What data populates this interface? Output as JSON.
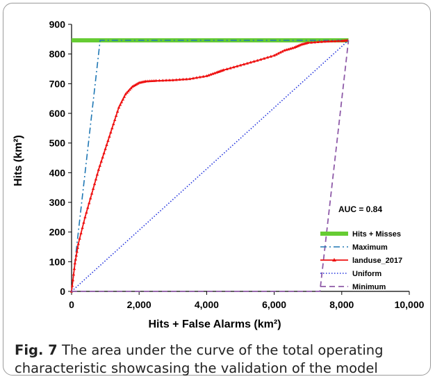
{
  "figure": {
    "caption_label": "Fig. 7",
    "caption_text": "The area under the curve of the total operating characteristic showcasing the validation of the model"
  },
  "chart_data": {
    "type": "line",
    "title": "",
    "xlabel": "Hits + False Alarms (km²)",
    "ylabel": "Hits (km²)",
    "xlim": [
      0,
      10000
    ],
    "ylim": [
      0,
      900
    ],
    "x_ticks": [
      0,
      2000,
      4000,
      6000,
      8000,
      10000
    ],
    "x_tick_labels": [
      "0",
      "2,000",
      "4,000",
      "6,000",
      "8,000",
      "10,000"
    ],
    "y_ticks": [
      0,
      100,
      200,
      300,
      400,
      500,
      600,
      700,
      800,
      900
    ],
    "y_tick_labels": [
      "0",
      "100",
      "200",
      "300",
      "400",
      "500",
      "600",
      "700",
      "800",
      "900"
    ],
    "grid": false,
    "annotation": "AUC = 0.84",
    "legend_position": "bottom-right",
    "series": [
      {
        "name": "Hits + Misses",
        "color": "#66cc33",
        "style": "solid-thick",
        "x": [
          0,
          8200
        ],
        "y": [
          846,
          846
        ]
      },
      {
        "name": "Maximum",
        "color": "#1f77b4",
        "style": "dash-dot",
        "x": [
          0,
          846,
          8200
        ],
        "y": [
          0,
          846,
          846
        ]
      },
      {
        "name": "landuse_2017",
        "color": "#ee1111",
        "style": "solid-marker",
        "x": [
          0,
          100,
          200,
          400,
          600,
          800,
          1000,
          1200,
          1400,
          1600,
          1800,
          2000,
          2200,
          2500,
          3000,
          3500,
          4000,
          4300,
          4500,
          5000,
          5500,
          6000,
          6300,
          6600,
          6800,
          7000,
          7500,
          8000,
          8200
        ],
        "y": [
          0,
          95,
          160,
          250,
          330,
          410,
          480,
          550,
          620,
          665,
          690,
          703,
          708,
          710,
          712,
          716,
          726,
          738,
          746,
          762,
          778,
          795,
          812,
          822,
          832,
          838,
          842,
          844,
          846
        ]
      },
      {
        "name": "Uniform",
        "color": "#2233dd",
        "style": "dotted",
        "x": [
          0,
          8200
        ],
        "y": [
          0,
          846
        ]
      },
      {
        "name": "Minimum",
        "color": "#8e5aa8",
        "style": "dashed",
        "x": [
          0,
          7354,
          8200
        ],
        "y": [
          0,
          0,
          846
        ]
      }
    ]
  }
}
